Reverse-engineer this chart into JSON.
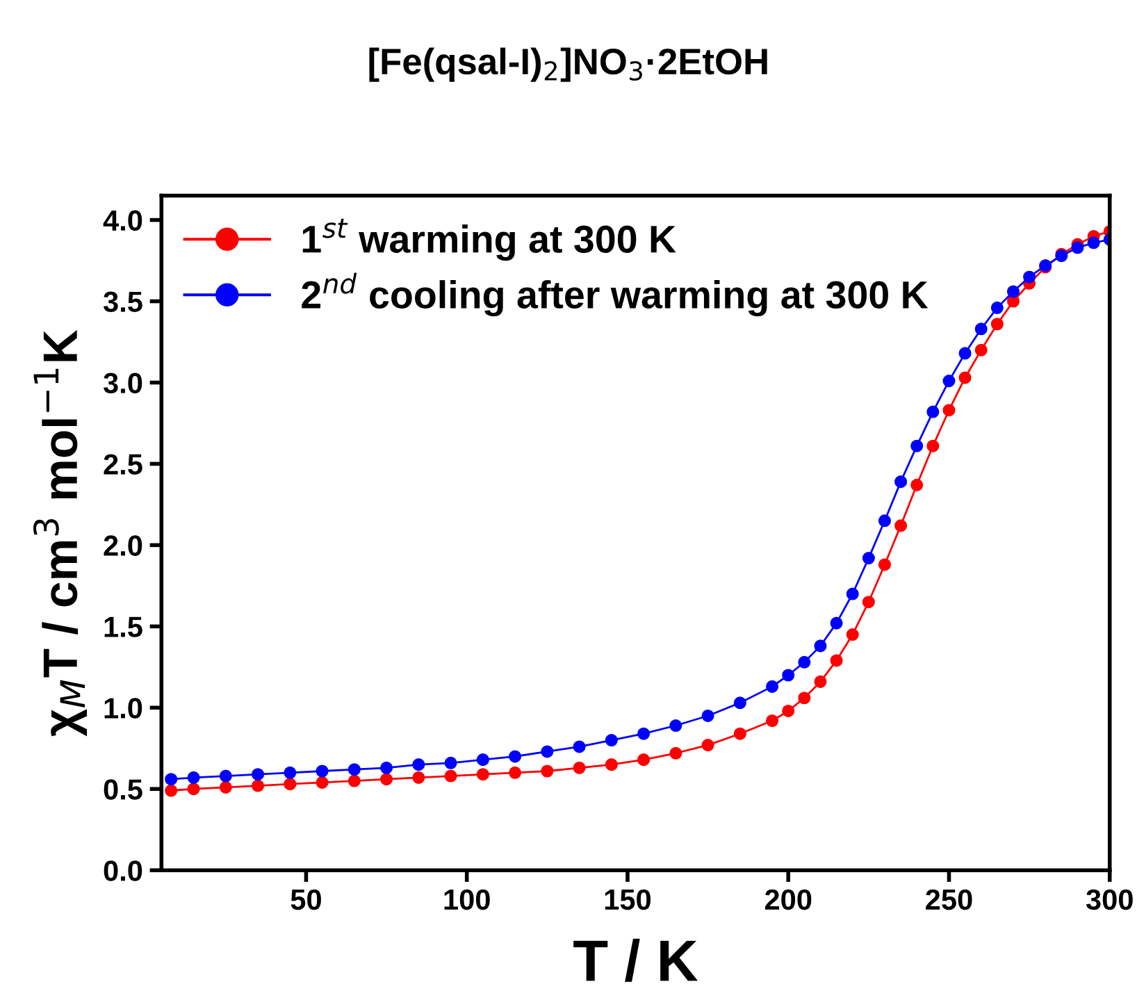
{
  "chart_data": {
    "type": "line",
    "title": "[Fe(qsal-I)$_{2}$]NO$_{3}$·2EtOH",
    "xlabel": "T / K",
    "ylabel": "χ$_{M}$T / cm$^{3}$ mol$^{−1}$K",
    "x": [
      8,
      15,
      25,
      35,
      45,
      55,
      65,
      75,
      85,
      95,
      105,
      115,
      125,
      135,
      145,
      155,
      165,
      175,
      185,
      195,
      200,
      205,
      210,
      215,
      220,
      225,
      230,
      235,
      240,
      245,
      250,
      255,
      260,
      265,
      270,
      275,
      280,
      285,
      290,
      295,
      300
    ],
    "series": [
      {
        "name": "1$^{st}$ warming at 300 K",
        "color": "#ff0000",
        "values": [
          0.49,
          0.5,
          0.51,
          0.52,
          0.53,
          0.54,
          0.55,
          0.56,
          0.57,
          0.58,
          0.59,
          0.6,
          0.61,
          0.63,
          0.65,
          0.68,
          0.72,
          0.77,
          0.84,
          0.92,
          0.98,
          1.06,
          1.16,
          1.29,
          1.45,
          1.65,
          1.88,
          2.12,
          2.37,
          2.61,
          2.83,
          3.03,
          3.2,
          3.36,
          3.5,
          3.61,
          3.71,
          3.79,
          3.85,
          3.9,
          3.93
        ]
      },
      {
        "name": "2$^{nd}$ cooling after warming at 300 K",
        "color": "#0000ff",
        "values": [
          0.56,
          0.57,
          0.58,
          0.59,
          0.6,
          0.61,
          0.62,
          0.63,
          0.65,
          0.66,
          0.68,
          0.7,
          0.73,
          0.76,
          0.8,
          0.84,
          0.89,
          0.95,
          1.03,
          1.13,
          1.2,
          1.28,
          1.38,
          1.52,
          1.7,
          1.92,
          2.15,
          2.39,
          2.61,
          2.82,
          3.01,
          3.18,
          3.33,
          3.46,
          3.56,
          3.65,
          3.72,
          3.78,
          3.83,
          3.86,
          3.88
        ]
      }
    ],
    "xlim": [
      5,
      300
    ],
    "ylim": [
      0,
      4.15
    ],
    "xticks": [
      50,
      100,
      150,
      200,
      250,
      300
    ],
    "yticks": [
      {
        "value": 0,
        "label": "0.0"
      },
      {
        "value": 0.5,
        "label": "0.5"
      },
      {
        "value": 1,
        "label": "1.0"
      },
      {
        "value": 1.5,
        "label": "1.5"
      },
      {
        "value": 2,
        "label": "2.0"
      },
      {
        "value": 2.5,
        "label": "2.5"
      },
      {
        "value": 3,
        "label": "3.0"
      },
      {
        "value": 3.5,
        "label": "3.5"
      },
      {
        "value": 4,
        "label": "4.0"
      }
    ],
    "marker": "circle",
    "line_style": "solid",
    "legend": "top left",
    "grid": false
  }
}
